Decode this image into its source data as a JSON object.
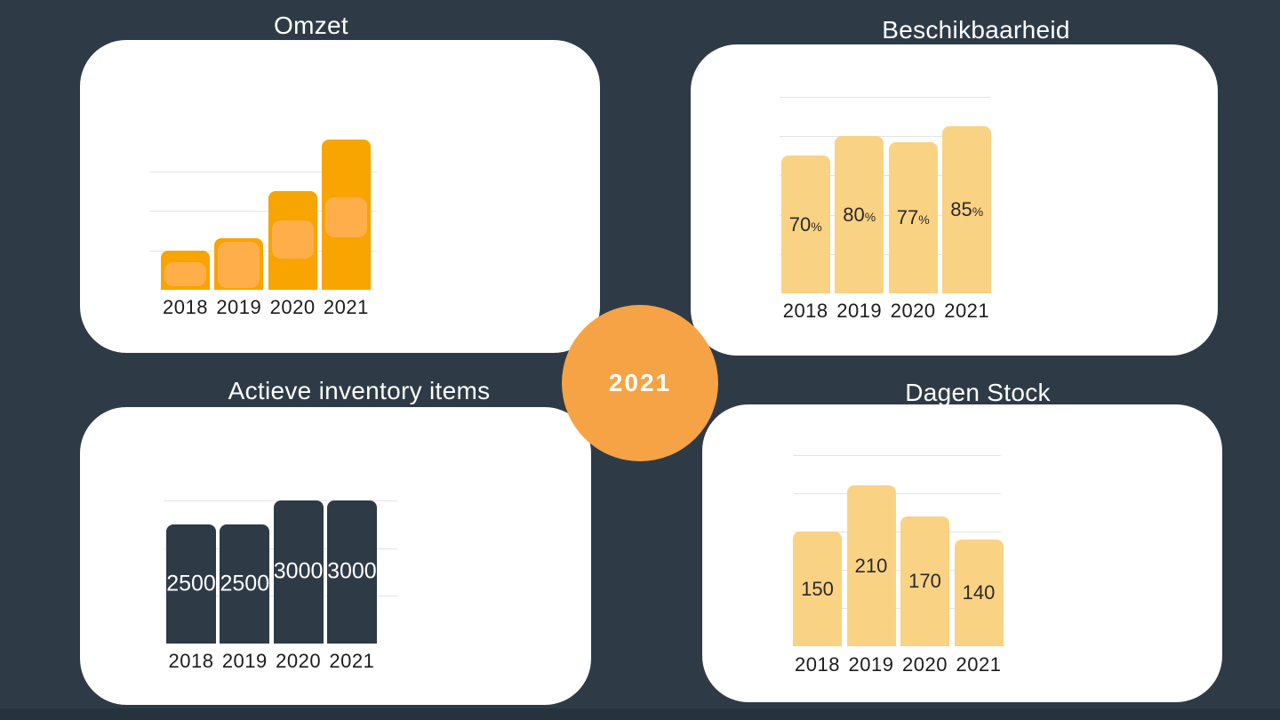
{
  "page": {
    "background_color": "#2E3B46",
    "card_color": "#FFFFFF",
    "footer_strip_color": "#26323D",
    "title_color": "#FFFFFF"
  },
  "center_badge": {
    "label": "2021",
    "bg_color": "#F5A344",
    "text_color": "#FFFFFF"
  },
  "chart_data": [
    {
      "id": "omzet",
      "type": "bar",
      "title": "Omzet",
      "categories": [
        "2018",
        "2019",
        "2020",
        "2021"
      ],
      "values": [
        0.5,
        0.65,
        1.25,
        1.9
      ],
      "values_note": "no numeric axis or data labels shown; values estimated from bar heights, gridlines every 0.5 relative units",
      "data_labels_visible": false,
      "gridline_interval": 0.5,
      "grid_on": true,
      "legend": "none",
      "bar_color": "#F8A401",
      "highlight_color": "#FFAE4A",
      "axis_label_color": "#1C1C1C"
    },
    {
      "id": "beschikbaarheid",
      "type": "bar",
      "title": "Beschikbaarheid",
      "categories": [
        "2018",
        "2019",
        "2020",
        "2021"
      ],
      "values": [
        70,
        80,
        77,
        85
      ],
      "unit": "%",
      "data_labels": [
        "70%",
        "80%",
        "77%",
        "85%"
      ],
      "label_suffix": "%",
      "label_position": "inside-center",
      "gridline_interval": 20,
      "grid_on": true,
      "legend": "none",
      "bar_color": "#FAD283",
      "label_color": "#2A2A2A",
      "axis_label_color": "#1C1C1C"
    },
    {
      "id": "inventory",
      "type": "bar",
      "title": "Actieve inventory items",
      "categories": [
        "2018",
        "2019",
        "2020",
        "2021"
      ],
      "values": [
        2500,
        2500,
        3000,
        3000
      ],
      "data_labels": [
        "2500",
        "2500",
        "3000",
        "3000"
      ],
      "label_position": "inside-center",
      "gridline_interval": 1000,
      "grid_on": true,
      "legend": "none",
      "bar_color": "#2E3B47",
      "label_color": "#FFFFFF",
      "axis_label_color": "#1C1C1C"
    },
    {
      "id": "dagen",
      "type": "bar",
      "title": "Dagen Stock",
      "categories": [
        "2018",
        "2019",
        "2020",
        "2021"
      ],
      "values": [
        150,
        210,
        170,
        140
      ],
      "data_labels": [
        "150",
        "210",
        "170",
        "140"
      ],
      "label_position": "inside-center",
      "gridline_interval": 50,
      "grid_on": true,
      "legend": "none",
      "bar_color": "#FAD283",
      "label_color": "#2A2A2A",
      "axis_label_color": "#1C1C1C"
    }
  ]
}
